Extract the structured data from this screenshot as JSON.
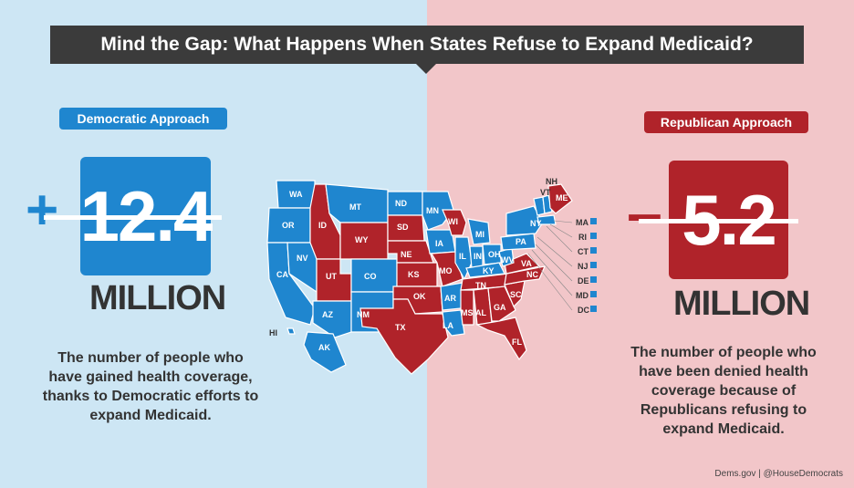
{
  "title": "Mind the Gap: What Happens When States Refuse to Expand Medicaid?",
  "colors": {
    "democratic": "#1f86cf",
    "republican": "#b0232a",
    "left_bg": "#cde6f4",
    "right_bg": "#f2c6c9",
    "banner": "#3b3b3b"
  },
  "democratic": {
    "label": "Democratic Approach",
    "sign": "+",
    "number": "12.4",
    "unit": "MILLION",
    "description": "The number of people who have gained health coverage, thanks to Democratic efforts to expand Medicaid."
  },
  "republican": {
    "label": "Republican Approach",
    "sign": "–",
    "number": "5.2",
    "unit": "MILLION",
    "description": "The number of people who have been denied health coverage because of Republicans refusing to expand Medicaid."
  },
  "map": {
    "states": {
      "WA": "WA",
      "OR": "OR",
      "CA": "CA",
      "NV": "NV",
      "ID": "ID",
      "MT": "MT",
      "WY": "WY",
      "UT": "UT",
      "AZ": "AZ",
      "CO": "CO",
      "NM": "NM",
      "ND": "ND",
      "SD": "SD",
      "NE": "NE",
      "KS": "KS",
      "OK": "OK",
      "TX": "TX",
      "MN": "MN",
      "IA": "IA",
      "MO": "MO",
      "AR": "AR",
      "LA": "LA",
      "WI": "WI",
      "IL": "IL",
      "MI": "MI",
      "IN": "IN",
      "OH": "OH",
      "KY": "KY",
      "TN": "TN",
      "MS": "MS",
      "AL": "AL",
      "GA": "GA",
      "FL": "FL",
      "SC": "SC",
      "NC": "NC",
      "VA": "VA",
      "WV": "WV",
      "PA": "PA",
      "NY": "NY",
      "VT": "VT",
      "NH": "NH",
      "ME": "ME",
      "AK": "AK",
      "HI": "HI"
    },
    "small_states": [
      "MA",
      "RI",
      "CT",
      "NJ",
      "DE",
      "MD",
      "DC"
    ]
  },
  "credit": "Dems.gov | @HouseDemocrats"
}
